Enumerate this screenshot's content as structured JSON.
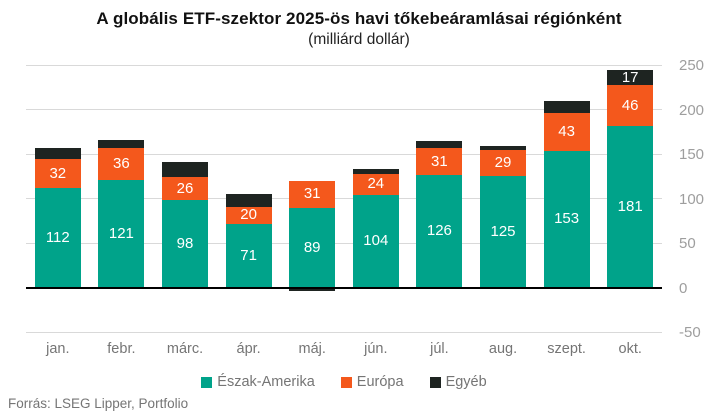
{
  "title": "A globális ETF-szektor 2025-ös havi tőkebeáramlásai régiónként",
  "subtitle": "(milliárd dollár)",
  "source": "Forrás: LSEG Lipper, Portfolio",
  "colors": {
    "north_america": "#00a38a",
    "europe": "#f4581c",
    "other": "#1e2421",
    "grid": "#d9d9d9",
    "zero_line": "#000000",
    "axis_tick_text": "#9e9e9e",
    "category_text": "#757575",
    "bar_label_text": "#ffffff"
  },
  "chart_data": {
    "type": "bar",
    "stacked": true,
    "grid": true,
    "legend_position": "bottom",
    "title": "A globális ETF-szektor 2025-ös havi tőkebeáramlásai régiónként",
    "subtitle": "(milliárd dollár)",
    "categories": [
      "jan.",
      "febr.",
      "márc.",
      "ápr.",
      "máj.",
      "jún.",
      "júl.",
      "aug.",
      "szept.",
      "okt."
    ],
    "series": [
      {
        "name": "Észak-Amerika",
        "color_key": "north_america",
        "values": [
          112,
          121,
          98,
          71,
          89,
          104,
          126,
          125,
          153,
          181
        ],
        "labels": [
          "112",
          "121",
          "98",
          "71",
          "89",
          "104",
          "126",
          "125",
          "153",
          "181"
        ]
      },
      {
        "name": "Európa",
        "color_key": "europe",
        "values": [
          32,
          36,
          26,
          20,
          31,
          24,
          31,
          29,
          43,
          46
        ],
        "labels": [
          "32",
          "36",
          "26",
          "20",
          "31",
          "24",
          "31",
          "29",
          "43",
          "46"
        ]
      },
      {
        "name": "Egyéb",
        "color_key": "other",
        "values": [
          13,
          9,
          17,
          14,
          -4,
          5,
          8,
          5,
          14,
          17
        ],
        "labels": [
          "",
          "",
          "",
          "",
          "",
          "",
          "",
          "",
          "",
          "17"
        ]
      }
    ],
    "ylim": [
      -50,
      250
    ],
    "yticks": [
      250,
      200,
      150,
      100,
      50,
      0,
      -50
    ],
    "xlabel": "",
    "ylabel": ""
  }
}
